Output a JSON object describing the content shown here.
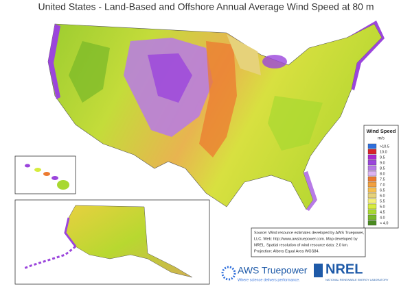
{
  "title": "United States - Land-Based and Offshore Annual Average Wind Speed at 80 m",
  "legend": {
    "title": "Wind Speed",
    "unit": "m/s",
    "items": [
      {
        "label": ">10.5",
        "color": "#2f6fdc"
      },
      {
        "label": "10.0",
        "color": "#d8232a"
      },
      {
        "label": "9.5",
        "color": "#a92ad0"
      },
      {
        "label": "9.0",
        "color": "#9b45dc"
      },
      {
        "label": "8.5",
        "color": "#b77ae6"
      },
      {
        "label": "8.0",
        "color": "#dcb4f2"
      },
      {
        "label": "7.5",
        "color": "#ec7a30"
      },
      {
        "label": "7.0",
        "color": "#f2a040"
      },
      {
        "label": "6.5",
        "color": "#f6c050"
      },
      {
        "label": "6.0",
        "color": "#e6d27a"
      },
      {
        "label": "5.5",
        "color": "#f4f07a"
      },
      {
        "label": "5.0",
        "color": "#d6ec3e"
      },
      {
        "label": "4.5",
        "color": "#a8d830"
      },
      {
        "label": "4.0",
        "color": "#78b828"
      },
      {
        "label": "< 4.0",
        "color": "#4a8a20"
      }
    ]
  },
  "source": {
    "lines": [
      "Source: Wind resource estimates developed by AWS Truepower,",
      "LLC. Web: http://www.awstruepower.com. Map developed by",
      "NREL. Spatial resolution of wind resource data: 2.0 km.",
      "Projection: Albers Equal Area WGS84."
    ]
  },
  "logos": {
    "aws_name": "AWS Truepower",
    "aws_tagline": "Where science delivers performance.",
    "nrel_name": "NREL",
    "nrel_tagline": "NATIONAL RENEWABLE ENERGY LABORATORY"
  }
}
